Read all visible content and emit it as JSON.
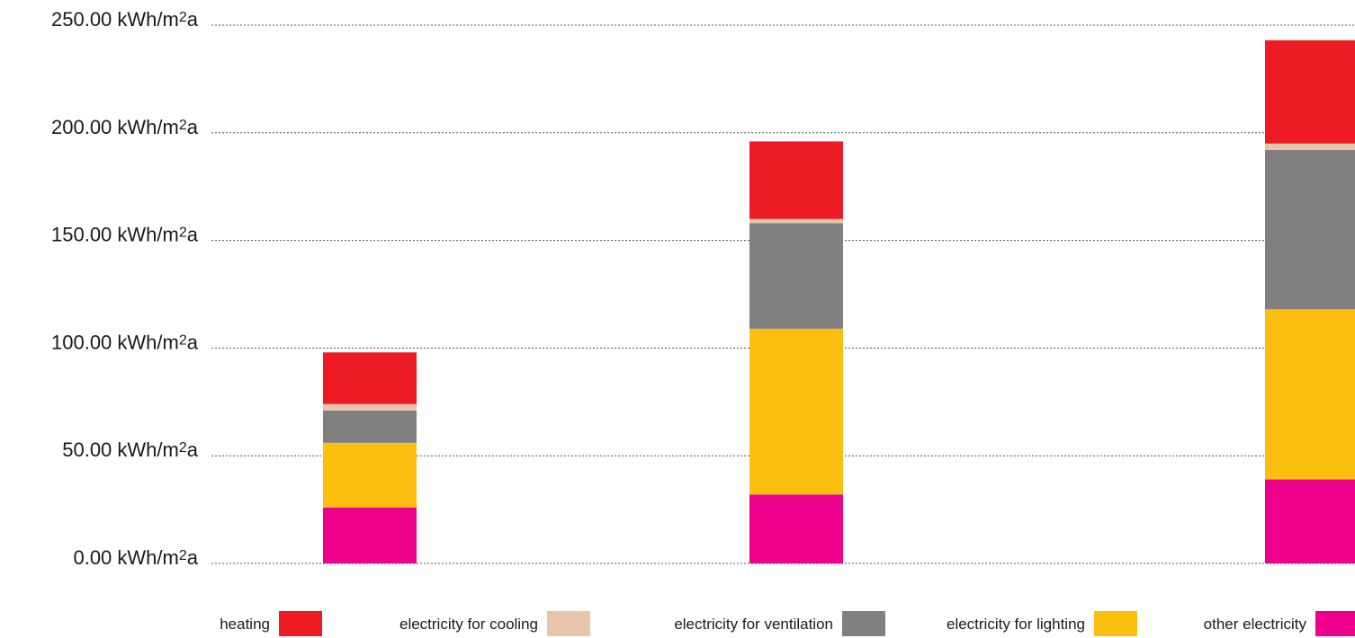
{
  "chart_data": {
    "type": "bar",
    "stacked": true,
    "title": "",
    "xlabel": "",
    "ylabel": "",
    "categories": [
      "",
      "",
      ""
    ],
    "ylim": [
      0,
      250
    ],
    "y_ticks": [
      0,
      50,
      100,
      150,
      200,
      250
    ],
    "y_tick_format": {
      "decimals": 2,
      "unit_prefix": "kWh/m",
      "unit_sup": "2",
      "unit_suffix": "a"
    },
    "grid": true,
    "legend_position": "bottom",
    "series": [
      {
        "name": "other electricity",
        "color": "#ec008c",
        "values": [
          26,
          32,
          39
        ]
      },
      {
        "name": "electricity for lighting",
        "color": "#fdbf0f",
        "values": [
          30,
          77,
          79
        ]
      },
      {
        "name": "electricity for ventilation",
        "color": "#808080",
        "values": [
          15,
          49,
          74
        ]
      },
      {
        "name": "electricity for cooling",
        "color": "#e8c4aa",
        "values": [
          3,
          2,
          3
        ]
      },
      {
        "name": "heating",
        "color": "#ed1c24",
        "values": [
          24,
          36,
          48
        ]
      }
    ],
    "legend_order": [
      "heating",
      "electricity for cooling",
      "electricity for ventilation",
      "electricity for lighting",
      "other electricity"
    ]
  }
}
